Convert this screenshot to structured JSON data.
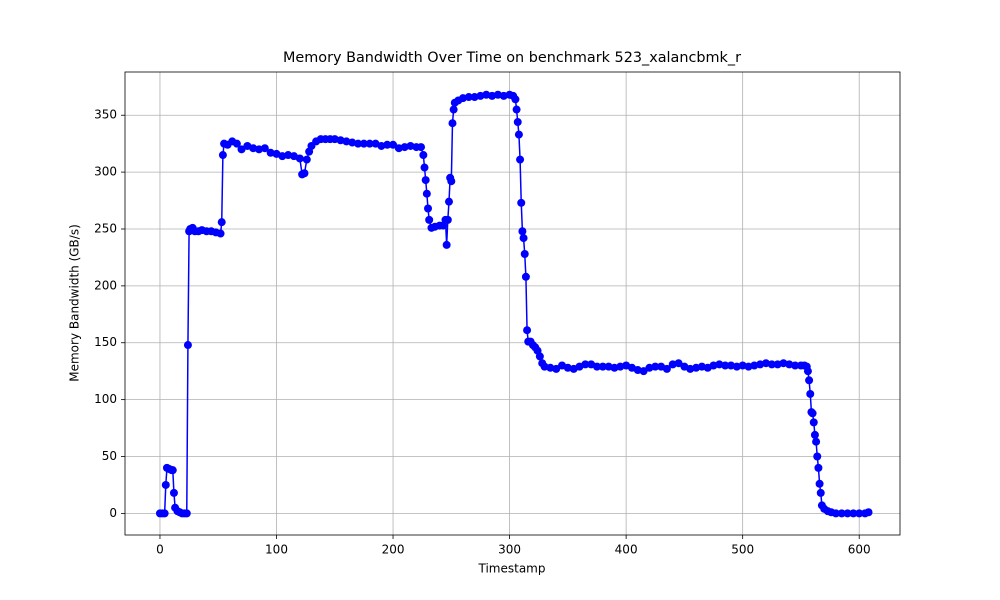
{
  "chart_data": {
    "type": "line",
    "title": "Memory Bandwidth Over Time on benchmark 523_xalancbmk_r",
    "x_label": "Timestamp",
    "y_label": "Memory Bandwidth (GB/s)",
    "color": "#0000ff",
    "grid": true,
    "xlim": [
      -30,
      635
    ],
    "ylim": [
      -19,
      388
    ],
    "xticks": [
      0,
      100,
      200,
      300,
      400,
      500,
      600
    ],
    "yticks": [
      0,
      50,
      100,
      150,
      200,
      250,
      300,
      350
    ],
    "x": [
      0,
      2,
      4,
      5,
      6,
      8,
      10,
      11,
      12,
      13,
      15,
      17,
      19,
      21,
      23,
      24,
      25,
      26,
      28,
      30,
      33,
      36,
      40,
      44,
      48,
      52,
      53,
      54,
      55,
      58,
      62,
      66,
      70,
      75,
      80,
      85,
      90,
      95,
      100,
      105,
      110,
      115,
      120,
      122,
      124,
      126,
      128,
      130,
      134,
      138,
      142,
      146,
      150,
      155,
      160,
      165,
      170,
      175,
      180,
      185,
      190,
      195,
      200,
      205,
      210,
      215,
      220,
      224,
      226,
      227,
      228,
      229,
      230,
      231,
      233,
      236,
      240,
      243,
      245,
      246,
      247,
      248,
      249,
      250,
      251,
      252,
      253,
      256,
      260,
      265,
      270,
      275,
      280,
      285,
      290,
      295,
      300,
      303,
      305,
      306,
      307,
      308,
      309,
      310,
      311,
      312,
      313,
      314,
      315,
      316,
      318,
      320,
      322,
      324,
      326,
      328,
      330,
      335,
      340,
      345,
      350,
      355,
      360,
      365,
      370,
      375,
      380,
      385,
      390,
      395,
      400,
      405,
      410,
      415,
      420,
      425,
      430,
      435,
      440,
      445,
      450,
      455,
      460,
      465,
      470,
      475,
      480,
      485,
      490,
      495,
      500,
      505,
      510,
      515,
      520,
      525,
      530,
      535,
      540,
      545,
      550,
      553,
      555,
      556,
      557,
      558,
      559,
      560,
      561,
      562,
      563,
      564,
      565,
      566,
      567,
      568,
      570,
      573,
      576,
      580,
      585,
      590,
      595,
      600,
      605,
      608
    ],
    "values": [
      0,
      0,
      0,
      25,
      40,
      39,
      38,
      38,
      18,
      5,
      2,
      1,
      0,
      0,
      0,
      148,
      248,
      250,
      251,
      248,
      248,
      249,
      248,
      248,
      247,
      246,
      256,
      315,
      325,
      324,
      327,
      325,
      320,
      323,
      321,
      320,
      321,
      317,
      316,
      314,
      315,
      314,
      312,
      298,
      299,
      311,
      318,
      323,
      327,
      329,
      329,
      329,
      329,
      328,
      327,
      326,
      325,
      325,
      325,
      325,
      323,
      324,
      324,
      321,
      322,
      323,
      322,
      322,
      315,
      304,
      293,
      281,
      268,
      258,
      251,
      252,
      253,
      253,
      258,
      236,
      258,
      274,
      295,
      292,
      343,
      355,
      361,
      363,
      365,
      366,
      366,
      367,
      368,
      367,
      368,
      367,
      368,
      367,
      364,
      355,
      344,
      333,
      311,
      273,
      248,
      242,
      228,
      208,
      161,
      151,
      151,
      148,
      146,
      143,
      138,
      132,
      129,
      128,
      127,
      130,
      128,
      127,
      129,
      131,
      131,
      129,
      129,
      129,
      128,
      129,
      130,
      128,
      126,
      125,
      128,
      129,
      129,
      127,
      131,
      132,
      129,
      127,
      128,
      129,
      128,
      130,
      131,
      130,
      130,
      129,
      130,
      129,
      130,
      131,
      132,
      131,
      131,
      132,
      131,
      130,
      130,
      130,
      129,
      125,
      117,
      105,
      89,
      88,
      80,
      69,
      63,
      50,
      40,
      26,
      18,
      7,
      4,
      2,
      1,
      0,
      0,
      0,
      0,
      0,
      0,
      1
    ]
  }
}
